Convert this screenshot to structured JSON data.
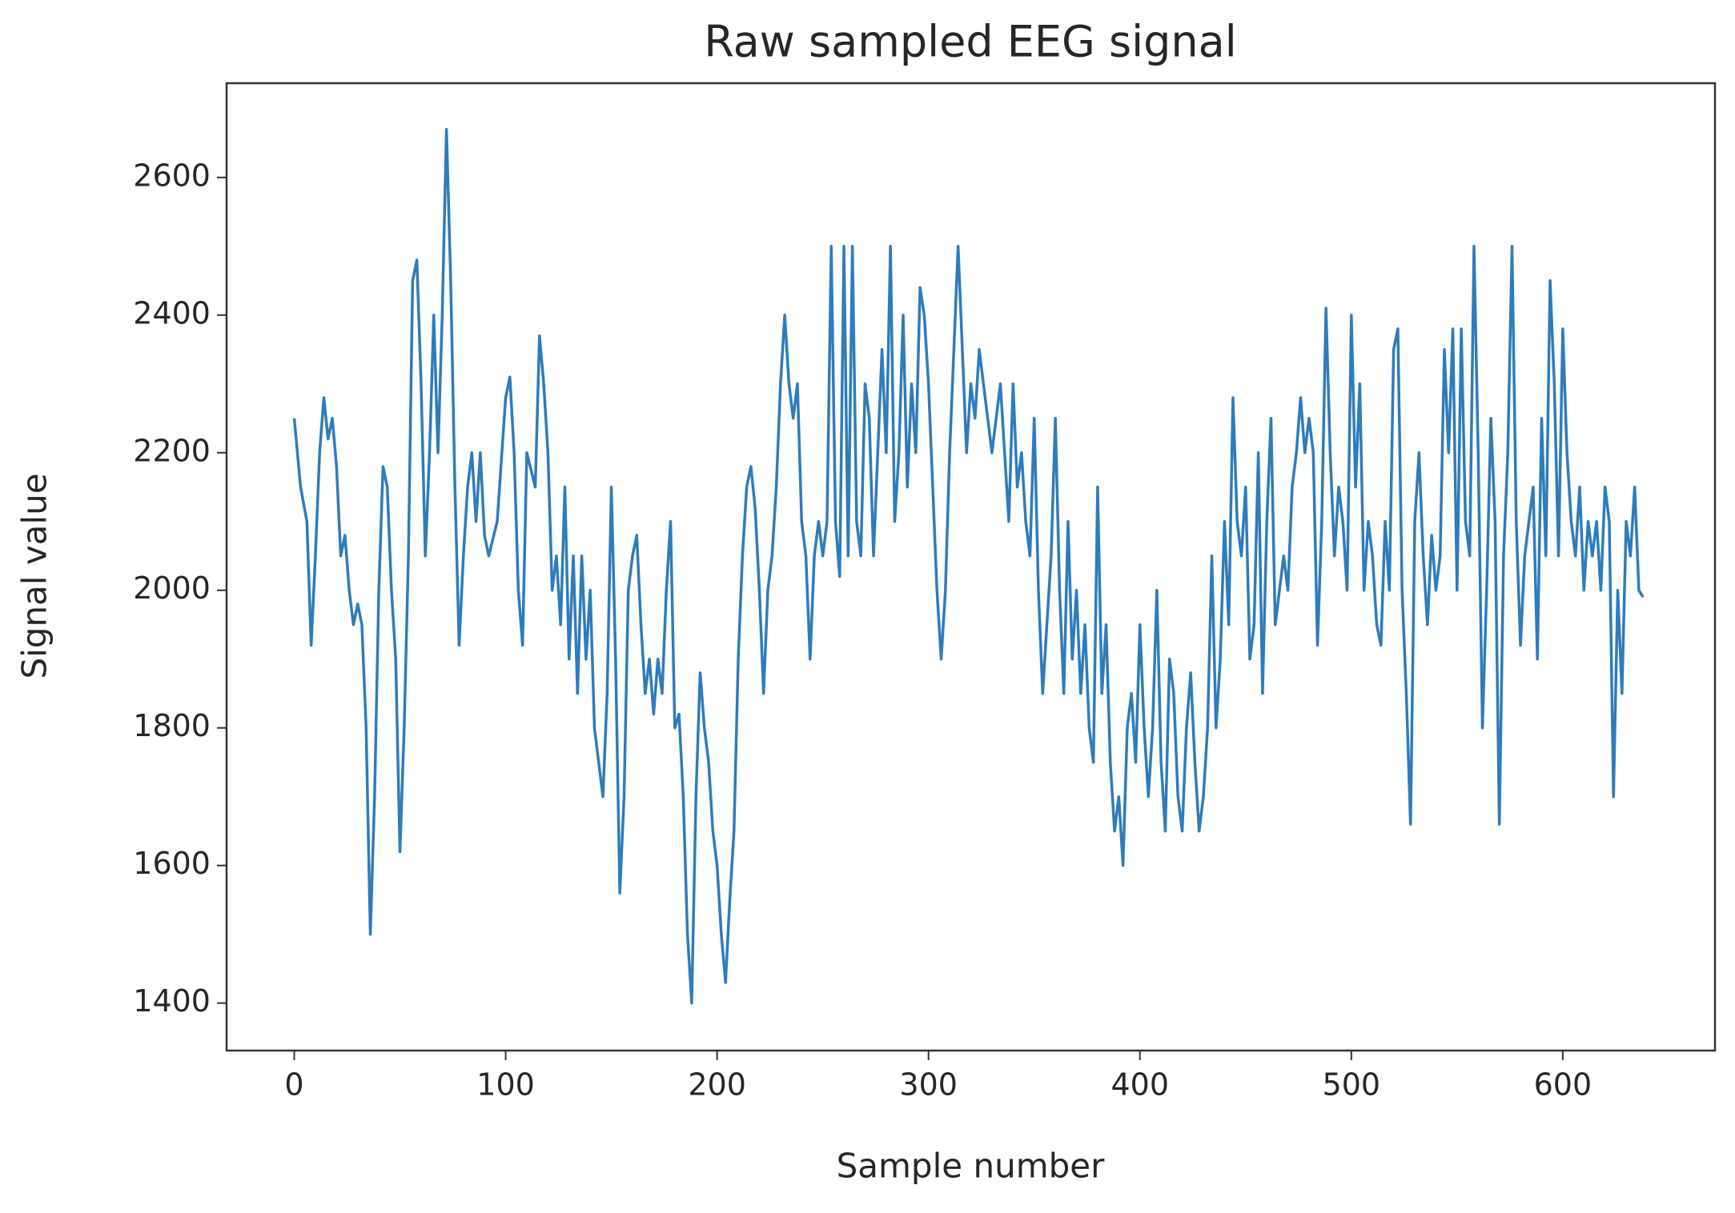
{
  "chart_data": {
    "type": "line",
    "title": "Raw sampled EEG signal",
    "x_label": "Sample number",
    "y_label": "Signal value",
    "color": "#2e7cbb",
    "xlim": [
      -32,
      672
    ],
    "ylim": [
      1331,
      2737
    ],
    "xticks": [
      0,
      100,
      200,
      300,
      400,
      500,
      600
    ],
    "yticks": [
      1400,
      1600,
      1800,
      2000,
      2200,
      2400,
      2600
    ],
    "x": [
      0,
      3,
      6,
      8,
      10,
      12,
      14,
      16,
      18,
      20,
      22,
      24,
      26,
      28,
      30,
      32,
      34,
      36,
      38,
      40,
      42,
      44,
      46,
      48,
      50,
      52,
      54,
      56,
      58,
      60,
      62,
      64,
      66,
      68,
      70,
      72,
      74,
      76,
      78,
      80,
      82,
      84,
      86,
      88,
      90,
      92,
      96,
      100,
      102,
      104,
      106,
      108,
      110,
      114,
      116,
      118,
      120,
      122,
      124,
      126,
      128,
      130,
      132,
      134,
      136,
      138,
      140,
      142,
      144,
      146,
      148,
      150,
      152,
      154,
      156,
      158,
      160,
      162,
      164,
      166,
      168,
      170,
      172,
      174,
      176,
      178,
      180,
      182,
      184,
      186,
      188,
      190,
      192,
      194,
      196,
      198,
      200,
      202,
      204,
      206,
      208,
      210,
      212,
      214,
      216,
      218,
      220,
      222,
      224,
      226,
      228,
      230,
      232,
      234,
      236,
      238,
      240,
      242,
      244,
      246,
      248,
      250,
      252,
      254,
      256,
      258,
      260,
      262,
      264,
      266,
      268,
      270,
      272,
      274,
      276,
      278,
      280,
      282,
      284,
      286,
      288,
      290,
      292,
      294,
      296,
      298,
      300,
      302,
      304,
      306,
      308,
      310,
      312,
      314,
      316,
      318,
      320,
      322,
      324,
      326,
      328,
      330,
      332,
      334,
      336,
      338,
      340,
      342,
      344,
      346,
      348,
      350,
      352,
      354,
      356,
      358,
      360,
      362,
      364,
      366,
      368,
      370,
      372,
      374,
      376,
      378,
      380,
      382,
      384,
      386,
      388,
      390,
      392,
      394,
      396,
      398,
      400,
      402,
      404,
      406,
      408,
      410,
      412,
      414,
      416,
      418,
      420,
      422,
      424,
      426,
      428,
      430,
      432,
      434,
      436,
      438,
      440,
      442,
      444,
      446,
      448,
      450,
      452,
      454,
      456,
      458,
      460,
      462,
      464,
      466,
      468,
      470,
      472,
      474,
      476,
      478,
      480,
      482,
      484,
      486,
      488,
      490,
      492,
      494,
      496,
      498,
      500,
      502,
      504,
      506,
      508,
      510,
      512,
      514,
      516,
      518,
      520,
      522,
      524,
      526,
      528,
      530,
      532,
      534,
      536,
      538,
      540,
      542,
      544,
      546,
      548,
      550,
      552,
      554,
      556,
      558,
      560,
      562,
      564,
      566,
      568,
      570,
      572,
      574,
      576,
      578,
      580,
      582,
      584,
      586,
      588,
      590,
      592,
      594,
      596,
      598,
      600,
      602,
      604,
      606,
      608,
      610,
      612,
      614,
      616,
      618,
      620,
      622,
      624,
      626,
      628,
      630,
      632,
      634,
      636,
      638
    ],
    "values": [
      2250,
      2150,
      2100,
      1920,
      2050,
      2200,
      2280,
      2220,
      2250,
      2180,
      2050,
      2080,
      2000,
      1950,
      1980,
      1950,
      1800,
      1500,
      1700,
      2000,
      2180,
      2150,
      2000,
      1900,
      1620,
      1800,
      2050,
      2450,
      2480,
      2300,
      2050,
      2200,
      2400,
      2200,
      2400,
      2670,
      2450,
      2150,
      1920,
      2050,
      2150,
      2200,
      2100,
      2200,
      2080,
      2050,
      2100,
      2280,
      2310,
      2200,
      2000,
      1920,
      2200,
      2150,
      2370,
      2300,
      2200,
      2000,
      2050,
      1950,
      2150,
      1900,
      2050,
      1850,
      2050,
      1900,
      2000,
      1800,
      1750,
      1700,
      1850,
      2150,
      1900,
      1560,
      1700,
      2000,
      2050,
      2080,
      1950,
      1850,
      1900,
      1820,
      1900,
      1850,
      2000,
      2100,
      1800,
      1820,
      1700,
      1500,
      1400,
      1700,
      1880,
      1800,
      1750,
      1650,
      1600,
      1500,
      1430,
      1550,
      1650,
      1900,
      2050,
      2150,
      2180,
      2120,
      2000,
      1850,
      2000,
      2050,
      2150,
      2300,
      2400,
      2300,
      2250,
      2300,
      2100,
      2050,
      1900,
      2050,
      2100,
      2050,
      2100,
      2500,
      2100,
      2020,
      2500,
      2050,
      2500,
      2100,
      2050,
      2300,
      2250,
      2050,
      2200,
      2350,
      2200,
      2500,
      2100,
      2200,
      2400,
      2150,
      2300,
      2200,
      2440,
      2400,
      2300,
      2150,
      2000,
      1900,
      2000,
      2200,
      2350,
      2500,
      2350,
      2200,
      2300,
      2250,
      2350,
      2300,
      2250,
      2200,
      2250,
      2300,
      2200,
      2100,
      2300,
      2150,
      2200,
      2100,
      2050,
      2250,
      2000,
      1850,
      1950,
      2050,
      2250,
      2000,
      1850,
      2100,
      1900,
      2000,
      1850,
      1950,
      1800,
      1750,
      2150,
      1850,
      1950,
      1750,
      1650,
      1700,
      1600,
      1800,
      1850,
      1750,
      1950,
      1800,
      1700,
      1800,
      2000,
      1750,
      1650,
      1900,
      1850,
      1700,
      1650,
      1800,
      1880,
      1750,
      1650,
      1700,
      1800,
      2050,
      1800,
      1900,
      2100,
      1950,
      2280,
      2100,
      2050,
      2150,
      1900,
      1950,
      2200,
      1850,
      2100,
      2250,
      1950,
      2000,
      2050,
      2000,
      2150,
      2200,
      2280,
      2200,
      2250,
      2200,
      1920,
      2100,
      2410,
      2200,
      2050,
      2150,
      2100,
      2000,
      2400,
      2150,
      2300,
      2000,
      2100,
      2050,
      1950,
      1920,
      2100,
      2000,
      2350,
      2380,
      2000,
      1850,
      1660,
      2100,
      2200,
      2050,
      1950,
      2080,
      2000,
      2050,
      2350,
      2200,
      2380,
      2000,
      2380,
      2100,
      2050,
      2500,
      2200,
      1800,
      2000,
      2250,
      2100,
      1660,
      2050,
      2200,
      2500,
      2100,
      1920,
      2050,
      2100,
      2150,
      1900,
      2250,
      2050,
      2450,
      2300,
      2050,
      2380,
      2200,
      2100,
      2050,
      2150,
      2000,
      2100,
      2050,
      2100,
      2000,
      2150,
      2100,
      1700,
      2000,
      1850,
      2100,
      2050,
      2150,
      2000,
      1990
    ]
  }
}
